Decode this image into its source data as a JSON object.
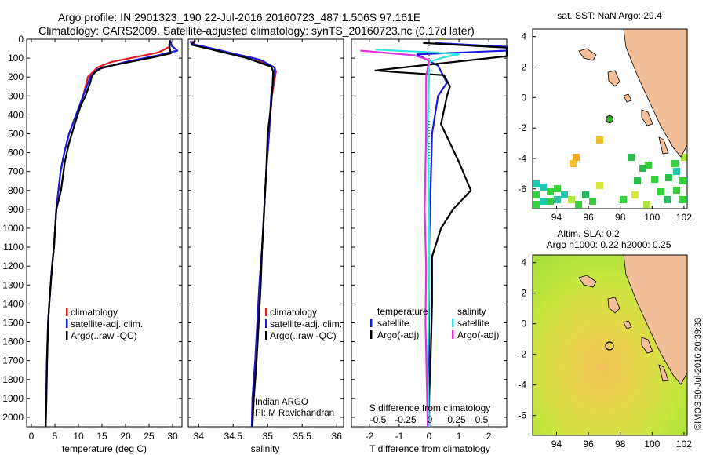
{
  "header": {
    "title_line1": "Argo profile: IN 2901323_190 22-Jul-2016 20160723_487 1.506S 97.161E",
    "title_line2": "Climatology: CARS2009. Satellite-adjusted climatology: synTS_20160723.nc (0.17d later)"
  },
  "colors": {
    "climatology": "#e02020",
    "satellite": "#1a1adb",
    "argo": "#000000",
    "sal_satellite": "#33e6e6",
    "sal_argo": "#dd33dd",
    "land": "#f3bf99",
    "ocean_sla": "#a8e23a"
  },
  "chart_data": [
    {
      "type": "line",
      "id": "temperature",
      "xlabel": "temperature (deg C)",
      "ylabel": "",
      "xlim": [
        -1,
        32
      ],
      "ylim": [
        2050,
        0
      ],
      "x_ticks": [
        0,
        5,
        10,
        15,
        20,
        25,
        30
      ],
      "y_ticks": [
        0,
        100,
        200,
        300,
        400,
        500,
        600,
        700,
        800,
        900,
        1000,
        1100,
        1200,
        1300,
        1400,
        1500,
        1600,
        1700,
        1800,
        1900,
        2000
      ],
      "legend": [
        "climatology",
        "satellite-adj. clim.",
        "Argo(..raw -QC)"
      ],
      "series": [
        {
          "name": "climatology",
          "color_key": "climatology",
          "x": [
            29.5,
            29.4,
            27,
            22,
            17,
            14,
            12,
            11,
            9.5,
            8,
            7,
            6.2,
            5.3,
            4.8,
            4.4,
            4.1,
            3.8,
            3.55,
            3.3,
            3.15,
            3.0
          ],
          "y": [
            10,
            40,
            70,
            95,
            120,
            150,
            200,
            300,
            400,
            500,
            600,
            700,
            900,
            1100,
            1200,
            1300,
            1400,
            1500,
            1700,
            1900,
            2050
          ]
        },
        {
          "name": "satellite",
          "color_key": "satellite",
          "x": [
            29.6,
            29.8,
            31,
            27,
            20,
            14,
            12.5,
            11,
            9.5,
            8,
            7,
            6.2,
            5.3,
            4.8,
            4.4,
            4.1,
            3.8,
            3.55,
            3.3,
            3.15,
            3.0
          ],
          "y": [
            10,
            35,
            60,
            85,
            120,
            160,
            200,
            300,
            400,
            500,
            600,
            700,
            900,
            1100,
            1200,
            1300,
            1400,
            1500,
            1700,
            1900,
            2050
          ]
        },
        {
          "name": "Argo",
          "color_key": "argo",
          "x": [
            29.5,
            29.3,
            29.6,
            26,
            20,
            15,
            13.5,
            12.8,
            12.5,
            11.5,
            10.5,
            9.2,
            8,
            7.1,
            6.3,
            5.3,
            4.8,
            4.4,
            4.1,
            3.8,
            3.55,
            3.35,
            3.2,
            3.05
          ],
          "y": [
            5,
            30,
            75,
            95,
            125,
            150,
            175,
            200,
            230,
            300,
            350,
            450,
            550,
            650,
            800,
            900,
            1100,
            1200,
            1300,
            1400,
            1500,
            1700,
            1900,
            2050
          ]
        }
      ]
    },
    {
      "type": "line",
      "id": "salinity",
      "xlabel": "salinity",
      "xlim": [
        33.85,
        36.1
      ],
      "ylim": [
        2050,
        0
      ],
      "x_ticks": [
        34,
        34.5,
        35,
        35.5,
        36
      ],
      "legend": [
        "climatology",
        "satellite-adj. clim.",
        "Argo(..raw -QC)"
      ],
      "annotation": [
        "Indian ARGO",
        "PI: M Ravichandran"
      ],
      "series": [
        {
          "name": "climatology",
          "color_key": "climatology",
          "x": [
            33.9,
            33.95,
            34.3,
            34.8,
            35.1,
            35.12,
            35.06,
            35.02,
            34.98,
            34.95,
            34.92,
            34.88,
            34.85,
            34.82,
            34.78,
            34.77
          ],
          "y": [
            10,
            30,
            60,
            100,
            150,
            170,
            300,
            500,
            700,
            900,
            1100,
            1300,
            1500,
            1700,
            1900,
            2050
          ]
        },
        {
          "name": "satellite",
          "color_key": "satellite",
          "x": [
            33.88,
            33.9,
            34.2,
            34.9,
            35.1,
            35.1,
            35.05,
            35.02,
            34.98,
            34.95,
            34.92,
            34.88,
            34.85,
            34.82,
            34.78,
            34.77
          ],
          "y": [
            10,
            25,
            50,
            110,
            150,
            175,
            300,
            500,
            700,
            900,
            1100,
            1300,
            1500,
            1700,
            1900,
            2050
          ]
        },
        {
          "name": "Argo",
          "color_key": "argo",
          "x": [
            33.95,
            33.9,
            34.2,
            34.7,
            35.05,
            35.08,
            35.07,
            35.05,
            35.0,
            34.98,
            34.95,
            34.92,
            34.9,
            34.87,
            34.84,
            34.8,
            34.78
          ],
          "y": [
            5,
            30,
            55,
            100,
            145,
            170,
            250,
            350,
            500,
            700,
            900,
            1100,
            1300,
            1500,
            1700,
            1900,
            2050
          ]
        }
      ]
    },
    {
      "type": "line",
      "id": "differences",
      "xlabel_top": "S difference from climatology",
      "xlabel": "T difference from climatology",
      "xlim": [
        -2.6,
        2.6
      ],
      "ylim": [
        2050,
        0
      ],
      "x_ticks": [
        -2,
        -1,
        0,
        1,
        2
      ],
      "s_tick_labels": [
        "-0.5",
        "-0.25",
        "0",
        "0.25",
        "0.5"
      ],
      "legend_temperature_title": "temperature",
      "legend_salinity_title": "salinity",
      "legend_temperature": [
        "satellite",
        "Argo(-adj)"
      ],
      "legend_salinity": [
        "satellite",
        "Argo(-adj)"
      ],
      "series": [
        {
          "name": "T satellite",
          "color_key": "satellite",
          "x": [
            0.2,
            2.6,
            2.6,
            -0.4,
            0.3,
            0.5,
            0.6,
            0.3,
            0.1,
            0.05,
            0.0,
            0.0,
            0.0,
            0.0
          ],
          "y": [
            20,
            40,
            60,
            80,
            140,
            200,
            230,
            300,
            500,
            800,
            1100,
            1400,
            1700,
            2050
          ]
        },
        {
          "name": "T Argo",
          "color_key": "argo",
          "x": [
            -0.2,
            2.6,
            2.6,
            -1.8,
            -1.0,
            0.5,
            0.7,
            0.6,
            0.4,
            0.7,
            1.0,
            1.4,
            0.8,
            0.4,
            0.1,
            0.1,
            0.05,
            0.0,
            0.0
          ],
          "y": [
            20,
            45,
            90,
            165,
            175,
            190,
            250,
            300,
            450,
            550,
            650,
            800,
            900,
            1000,
            1150,
            1400,
            1700,
            1900,
            2050
          ]
        },
        {
          "name": "S satellite",
          "color_key": "sal_satellite",
          "x": [
            -1.8,
            0.2,
            1.0,
            0.5,
            0.0,
            0.0,
            -0.05,
            0.0,
            0.0,
            -0.05,
            0.0
          ],
          "y": [
            55,
            70,
            80,
            95,
            120,
            200,
            500,
            900,
            1300,
            1700,
            2050
          ]
        },
        {
          "name": "S Argo",
          "color_key": "sal_argo",
          "x": [
            -2.3,
            -1.6,
            -0.5,
            0.0,
            -0.1,
            -0.1,
            -0.15,
            -0.1,
            -0.12,
            -0.08,
            -0.05
          ],
          "y": [
            60,
            70,
            85,
            110,
            200,
            500,
            900,
            1200,
            1500,
            1800,
            2050
          ]
        }
      ]
    },
    {
      "type": "heatmap",
      "id": "sst_map",
      "title": "sat. SST: NaN Argo: 29.4",
      "xlim": [
        92.5,
        102.2
      ],
      "ylim": [
        -7.3,
        4.5
      ],
      "x_ticks": [
        94,
        96,
        98,
        100,
        102
      ],
      "y_ticks": [
        -6,
        -4,
        -2,
        0,
        2,
        4
      ],
      "float_position": {
        "lon": 97.161,
        "lat": -1.506
      }
    },
    {
      "type": "heatmap",
      "id": "sla_map",
      "title_line1": "Altim. SLA: 0.2",
      "title_line2": "Argo h1000: 0.22 h2000: 0.25",
      "xlim": [
        92.5,
        102.2
      ],
      "ylim": [
        -7.3,
        4.5
      ],
      "x_ticks": [
        94,
        96,
        98,
        100,
        102
      ],
      "y_ticks": [
        -6,
        -4,
        -2,
        0,
        2,
        4
      ],
      "float_position": {
        "lon": 97.161,
        "lat": -1.506
      }
    }
  ],
  "footer": {
    "stamp": "©IMOS 30-Jul-2016 20:39:33"
  }
}
